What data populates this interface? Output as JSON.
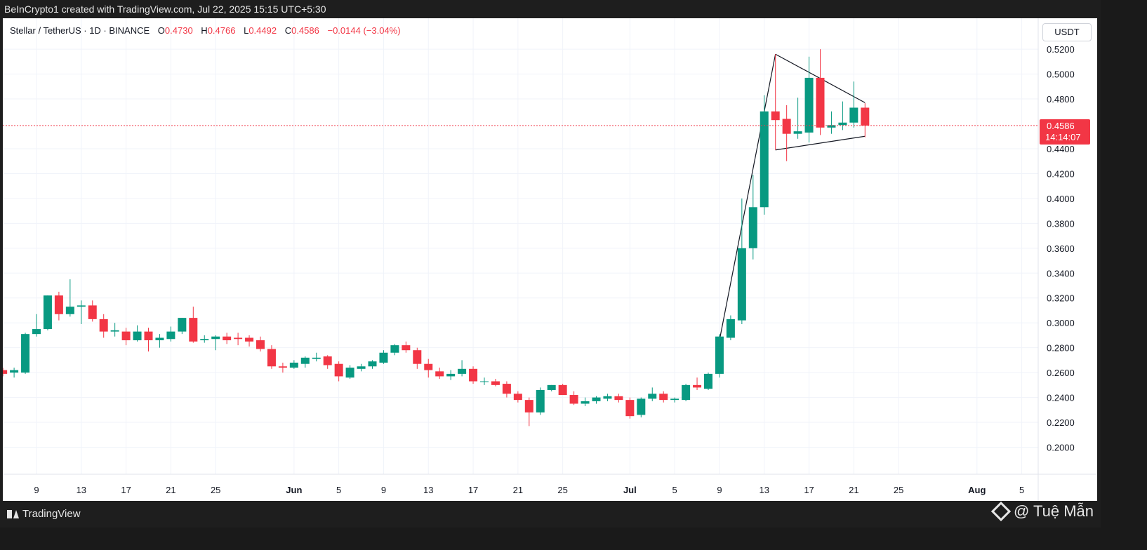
{
  "header": {
    "caption": "BeInCrypto1 created with TradingView.com, Jul 22, 2025 15:15 UTC+5:30"
  },
  "legend": {
    "symbol": "Stellar / TetherUS · 1D · BINANCE",
    "o_label": "O",
    "o_value": "0.4730",
    "h_label": "H",
    "h_value": "0.4766",
    "l_label": "L",
    "l_value": "0.4492",
    "c_label": "C",
    "c_value": "0.4586",
    "change": "−0.0144 (−3.04%)"
  },
  "currency_button": "USDT",
  "footer": {
    "logo_text": "TradingView",
    "watermark": "@ Tuệ Mẫn"
  },
  "colors": {
    "up": "#089981",
    "down": "#f23645",
    "grid": "#f0f3fa",
    "text": "#131722",
    "axis_text": "#131722"
  },
  "chart_data": {
    "type": "candlestick",
    "symbol": "XLMUSDT",
    "interval": "1D",
    "y_ticks": [
      "0.2000",
      "0.2200",
      "0.2400",
      "0.2600",
      "0.2800",
      "0.3000",
      "0.3200",
      "0.3400",
      "0.3600",
      "0.3800",
      "0.4000",
      "0.4200",
      "0.4400",
      "0.4800",
      "0.5000",
      "0.5200"
    ],
    "y_range": [
      0.18,
      0.535
    ],
    "x_ticks": [
      {
        "label": "9",
        "day": 9
      },
      {
        "label": "13",
        "day": 13
      },
      {
        "label": "17",
        "day": 17
      },
      {
        "label": "21",
        "day": 21
      },
      {
        "label": "25",
        "day": 25
      },
      {
        "label": "Jun",
        "day": 32
      },
      {
        "label": "5",
        "day": 36
      },
      {
        "label": "9",
        "day": 40
      },
      {
        "label": "13",
        "day": 44
      },
      {
        "label": "17",
        "day": 48
      },
      {
        "label": "21",
        "day": 52
      },
      {
        "label": "25",
        "day": 56
      },
      {
        "label": "Jul",
        "day": 62
      },
      {
        "label": "5",
        "day": 66
      },
      {
        "label": "9",
        "day": 70
      },
      {
        "label": "13",
        "day": 74
      },
      {
        "label": "17",
        "day": 78
      },
      {
        "label": "21",
        "day": 82
      },
      {
        "label": "25",
        "day": 86
      },
      {
        "label": "Aug",
        "day": 93
      },
      {
        "label": "5",
        "day": 97
      }
    ],
    "x_day_range": [
      6,
      101
    ],
    "x_day_reference": "day 1 = May 1, 2025",
    "last_price": "0.4586",
    "countdown": "14:14:07",
    "candles": [
      {
        "d": 6,
        "o": 0.262,
        "h": 0.264,
        "l": 0.257,
        "c": 0.259
      },
      {
        "d": 7,
        "o": 0.26,
        "h": 0.264,
        "l": 0.256,
        "c": 0.262
      },
      {
        "d": 8,
        "o": 0.26,
        "h": 0.292,
        "l": 0.259,
        "c": 0.291
      },
      {
        "d": 9,
        "o": 0.291,
        "h": 0.307,
        "l": 0.289,
        "c": 0.295
      },
      {
        "d": 10,
        "o": 0.295,
        "h": 0.322,
        "l": 0.294,
        "c": 0.322
      },
      {
        "d": 11,
        "o": 0.322,
        "h": 0.325,
        "l": 0.302,
        "c": 0.307
      },
      {
        "d": 12,
        "o": 0.307,
        "h": 0.335,
        "l": 0.305,
        "c": 0.313
      },
      {
        "d": 13,
        "o": 0.313,
        "h": 0.318,
        "l": 0.299,
        "c": 0.314
      },
      {
        "d": 14,
        "o": 0.314,
        "h": 0.318,
        "l": 0.301,
        "c": 0.303
      },
      {
        "d": 15,
        "o": 0.303,
        "h": 0.307,
        "l": 0.288,
        "c": 0.293
      },
      {
        "d": 16,
        "o": 0.293,
        "h": 0.3,
        "l": 0.289,
        "c": 0.294
      },
      {
        "d": 17,
        "o": 0.293,
        "h": 0.296,
        "l": 0.282,
        "c": 0.286
      },
      {
        "d": 18,
        "o": 0.286,
        "h": 0.298,
        "l": 0.285,
        "c": 0.293
      },
      {
        "d": 19,
        "o": 0.293,
        "h": 0.296,
        "l": 0.277,
        "c": 0.286
      },
      {
        "d": 20,
        "o": 0.286,
        "h": 0.291,
        "l": 0.28,
        "c": 0.288
      },
      {
        "d": 21,
        "o": 0.287,
        "h": 0.297,
        "l": 0.285,
        "c": 0.293
      },
      {
        "d": 22,
        "o": 0.293,
        "h": 0.304,
        "l": 0.291,
        "c": 0.304
      },
      {
        "d": 23,
        "o": 0.304,
        "h": 0.313,
        "l": 0.284,
        "c": 0.285
      },
      {
        "d": 24,
        "o": 0.286,
        "h": 0.29,
        "l": 0.284,
        "c": 0.287
      },
      {
        "d": 25,
        "o": 0.287,
        "h": 0.29,
        "l": 0.278,
        "c": 0.289
      },
      {
        "d": 26,
        "o": 0.289,
        "h": 0.292,
        "l": 0.283,
        "c": 0.286
      },
      {
        "d": 27,
        "o": 0.288,
        "h": 0.292,
        "l": 0.282,
        "c": 0.287
      },
      {
        "d": 28,
        "o": 0.288,
        "h": 0.29,
        "l": 0.281,
        "c": 0.285
      },
      {
        "d": 29,
        "o": 0.286,
        "h": 0.289,
        "l": 0.277,
        "c": 0.279
      },
      {
        "d": 30,
        "o": 0.279,
        "h": 0.282,
        "l": 0.263,
        "c": 0.265
      },
      {
        "d": 31,
        "o": 0.265,
        "h": 0.268,
        "l": 0.26,
        "c": 0.264
      },
      {
        "d": 32,
        "o": 0.264,
        "h": 0.27,
        "l": 0.263,
        "c": 0.268
      },
      {
        "d": 33,
        "o": 0.267,
        "h": 0.273,
        "l": 0.264,
        "c": 0.272
      },
      {
        "d": 34,
        "o": 0.271,
        "h": 0.276,
        "l": 0.269,
        "c": 0.272
      },
      {
        "d": 35,
        "o": 0.273,
        "h": 0.274,
        "l": 0.263,
        "c": 0.266
      },
      {
        "d": 36,
        "o": 0.267,
        "h": 0.269,
        "l": 0.253,
        "c": 0.257
      },
      {
        "d": 37,
        "o": 0.256,
        "h": 0.266,
        "l": 0.255,
        "c": 0.264
      },
      {
        "d": 38,
        "o": 0.263,
        "h": 0.267,
        "l": 0.261,
        "c": 0.265
      },
      {
        "d": 39,
        "o": 0.265,
        "h": 0.27,
        "l": 0.263,
        "c": 0.269
      },
      {
        "d": 40,
        "o": 0.268,
        "h": 0.278,
        "l": 0.267,
        "c": 0.276
      },
      {
        "d": 41,
        "o": 0.276,
        "h": 0.283,
        "l": 0.274,
        "c": 0.282
      },
      {
        "d": 42,
        "o": 0.282,
        "h": 0.285,
        "l": 0.276,
        "c": 0.278
      },
      {
        "d": 43,
        "o": 0.278,
        "h": 0.28,
        "l": 0.263,
        "c": 0.267
      },
      {
        "d": 44,
        "o": 0.267,
        "h": 0.271,
        "l": 0.256,
        "c": 0.262
      },
      {
        "d": 45,
        "o": 0.261,
        "h": 0.264,
        "l": 0.255,
        "c": 0.257
      },
      {
        "d": 46,
        "o": 0.257,
        "h": 0.262,
        "l": 0.254,
        "c": 0.259
      },
      {
        "d": 47,
        "o": 0.259,
        "h": 0.27,
        "l": 0.257,
        "c": 0.263
      },
      {
        "d": 48,
        "o": 0.263,
        "h": 0.265,
        "l": 0.251,
        "c": 0.253
      },
      {
        "d": 49,
        "o": 0.253,
        "h": 0.256,
        "l": 0.25,
        "c": 0.253
      },
      {
        "d": 50,
        "o": 0.253,
        "h": 0.255,
        "l": 0.249,
        "c": 0.25
      },
      {
        "d": 51,
        "o": 0.251,
        "h": 0.253,
        "l": 0.24,
        "c": 0.243
      },
      {
        "d": 52,
        "o": 0.243,
        "h": 0.245,
        "l": 0.236,
        "c": 0.238
      },
      {
        "d": 53,
        "o": 0.238,
        "h": 0.24,
        "l": 0.217,
        "c": 0.228
      },
      {
        "d": 54,
        "o": 0.228,
        "h": 0.248,
        "l": 0.226,
        "c": 0.246
      },
      {
        "d": 55,
        "o": 0.246,
        "h": 0.25,
        "l": 0.245,
        "c": 0.25
      },
      {
        "d": 56,
        "o": 0.25,
        "h": 0.251,
        "l": 0.242,
        "c": 0.242
      },
      {
        "d": 57,
        "o": 0.242,
        "h": 0.245,
        "l": 0.234,
        "c": 0.235
      },
      {
        "d": 58,
        "o": 0.235,
        "h": 0.24,
        "l": 0.233,
        "c": 0.237
      },
      {
        "d": 59,
        "o": 0.237,
        "h": 0.241,
        "l": 0.235,
        "c": 0.24
      },
      {
        "d": 60,
        "o": 0.239,
        "h": 0.243,
        "l": 0.237,
        "c": 0.241
      },
      {
        "d": 61,
        "o": 0.241,
        "h": 0.243,
        "l": 0.236,
        "c": 0.238
      },
      {
        "d": 62,
        "o": 0.238,
        "h": 0.24,
        "l": 0.223,
        "c": 0.225
      },
      {
        "d": 63,
        "o": 0.226,
        "h": 0.24,
        "l": 0.224,
        "c": 0.239
      },
      {
        "d": 64,
        "o": 0.239,
        "h": 0.248,
        "l": 0.237,
        "c": 0.243
      },
      {
        "d": 65,
        "o": 0.243,
        "h": 0.245,
        "l": 0.236,
        "c": 0.238
      },
      {
        "d": 66,
        "o": 0.238,
        "h": 0.24,
        "l": 0.236,
        "c": 0.239
      },
      {
        "d": 67,
        "o": 0.238,
        "h": 0.251,
        "l": 0.237,
        "c": 0.25
      },
      {
        "d": 68,
        "o": 0.25,
        "h": 0.256,
        "l": 0.246,
        "c": 0.248
      },
      {
        "d": 69,
        "o": 0.247,
        "h": 0.26,
        "l": 0.246,
        "c": 0.259
      },
      {
        "d": 70,
        "o": 0.259,
        "h": 0.291,
        "l": 0.256,
        "c": 0.289
      },
      {
        "d": 71,
        "o": 0.288,
        "h": 0.306,
        "l": 0.286,
        "c": 0.303
      },
      {
        "d": 72,
        "o": 0.302,
        "h": 0.4,
        "l": 0.299,
        "c": 0.36
      },
      {
        "d": 73,
        "o": 0.36,
        "h": 0.419,
        "l": 0.351,
        "c": 0.393
      },
      {
        "d": 74,
        "o": 0.393,
        "h": 0.483,
        "l": 0.387,
        "c": 0.47
      },
      {
        "d": 75,
        "o": 0.47,
        "h": 0.516,
        "l": 0.439,
        "c": 0.463
      },
      {
        "d": 76,
        "o": 0.464,
        "h": 0.475,
        "l": 0.43,
        "c": 0.452
      },
      {
        "d": 77,
        "o": 0.452,
        "h": 0.481,
        "l": 0.448,
        "c": 0.454
      },
      {
        "d": 78,
        "o": 0.453,
        "h": 0.514,
        "l": 0.445,
        "c": 0.497
      },
      {
        "d": 79,
        "o": 0.497,
        "h": 0.52,
        "l": 0.451,
        "c": 0.457
      },
      {
        "d": 80,
        "o": 0.457,
        "h": 0.47,
        "l": 0.452,
        "c": 0.459
      },
      {
        "d": 81,
        "o": 0.459,
        "h": 0.478,
        "l": 0.455,
        "c": 0.461
      },
      {
        "d": 82,
        "o": 0.461,
        "h": 0.494,
        "l": 0.457,
        "c": 0.473
      },
      {
        "d": 83,
        "o": 0.473,
        "h": 0.4766,
        "l": 0.4492,
        "c": 0.4586
      }
    ],
    "drawings": {
      "pole": [
        [
          70,
          0.286
        ],
        [
          75,
          0.516
        ]
      ],
      "upper_line": [
        [
          75,
          0.516
        ],
        [
          83,
          0.477
        ]
      ],
      "lower_line": [
        [
          75,
          0.439
        ],
        [
          83,
          0.45
        ]
      ]
    }
  }
}
